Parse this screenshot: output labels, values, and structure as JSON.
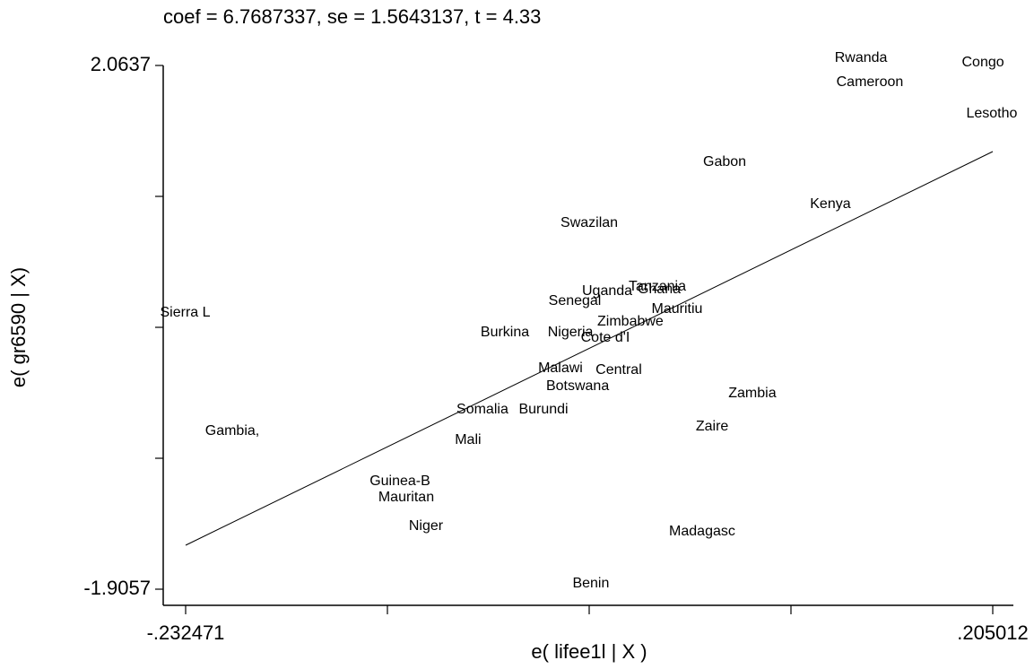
{
  "chart_data": {
    "type": "scatter",
    "title": "coef = 6.7687337, se = 1.5643137, t = 4.33",
    "x_label": "e( lifee1l | X )",
    "y_label": "e( gr6590 | X)",
    "xlim": [
      -0.232471,
      0.205012
    ],
    "ylim": [
      -1.9057,
      2.0637
    ],
    "xticks": [
      {
        "value": -0.232471,
        "label": "-.232471"
      },
      {
        "value": -0.1231
      },
      {
        "value": -0.01373
      },
      {
        "value": 0.09564
      },
      {
        "value": 0.205012,
        "label": ".205012"
      }
    ],
    "yticks": [
      2.0637,
      {
        "value": 1.0714
      },
      {
        "value": 0.079
      },
      {
        "value": -0.9134
      },
      -1.9057
    ],
    "points": {
      "labels": [
        "Rwanda",
        "Congo",
        "Cameroon",
        "Lesotho",
        "Gabon",
        "Kenya",
        "Swazilan",
        "Sierra L",
        "Uganda",
        "Tanzania",
        "Ghana",
        "Senegal",
        "Mauritiu",
        "Zimbabwe",
        "Burkina",
        "Nigeria",
        "Cote d'I",
        "Malawi",
        "Central",
        "Botswana",
        "Zambia",
        "Somalia",
        "Burundi",
        "Gambia,",
        "Zaire",
        "Mali",
        "Guinea-B",
        "Mauritan",
        "Niger",
        "Madagasc",
        "Benin"
      ],
      "x": [
        0.1336,
        0.1997,
        0.1384,
        0.2045,
        0.0597,
        0.117,
        -0.0137,
        -0.2327,
        -0.004,
        0.0232,
        0.0242,
        -0.0215,
        0.0339,
        0.0086,
        -0.0594,
        -0.0239,
        -0.005,
        -0.0293,
        0.0023,
        -0.02,
        0.0747,
        -0.0716,
        -0.0385,
        -0.2072,
        0.0529,
        -0.0794,
        -0.1163,
        -0.1129,
        -0.1022,
        0.0475,
        -0.0128
      ],
      "y": [
        2.118,
        2.084,
        1.9346,
        1.6967,
        1.3296,
        1.0102,
        0.8674,
        0.1878,
        0.3509,
        0.3849,
        0.3645,
        0.2761,
        0.2149,
        0.1198,
        0.0382,
        0.0382,
        -0.0026,
        -0.2336,
        -0.2472,
        -0.3696,
        -0.424,
        -0.5463,
        -0.5463,
        -0.7094,
        -0.6754,
        -0.7774,
        -1.0901,
        -1.2125,
        -1.43,
        -1.4707,
        -1.865
      ]
    },
    "fit": {
      "x": [
        -0.232471,
        0.205012
      ],
      "y": [
        -1.5726,
        1.4112
      ]
    }
  }
}
